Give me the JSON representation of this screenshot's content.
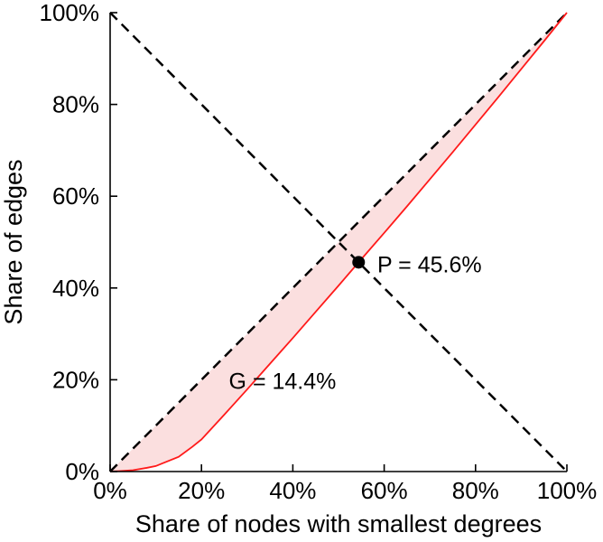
{
  "figure": {
    "background": "#ffffff",
    "text_color": "#000000"
  },
  "chart_data": {
    "type": "line",
    "title": "",
    "xlabel": "Share of nodes with smallest degrees",
    "ylabel": "Share of edges",
    "xlim": [
      0,
      100
    ],
    "ylim": [
      0,
      100
    ],
    "grid": false,
    "legend": "none",
    "x_ticks": {
      "values": [
        0,
        20,
        40,
        60,
        80,
        100
      ],
      "labels": [
        "0%",
        "20%",
        "40%",
        "60%",
        "80%",
        "100%"
      ]
    },
    "y_ticks": {
      "values": [
        0,
        20,
        40,
        60,
        80,
        100
      ],
      "labels": [
        "0%",
        "20%",
        "40%",
        "60%",
        "80%",
        "100%"
      ]
    },
    "series": [
      {
        "name": "equality-diagonal",
        "style": "dashed",
        "color": "#000000",
        "points": [
          [
            0,
            0
          ],
          [
            100,
            100
          ]
        ]
      },
      {
        "name": "anti-diagonal",
        "style": "dashed",
        "color": "#000000",
        "points": [
          [
            0,
            100
          ],
          [
            100,
            0
          ]
        ]
      },
      {
        "name": "lorenz-curve",
        "style": "solid",
        "color": "#ff1a1a",
        "fill_between_diagonal": "#fbdfdf",
        "points": [
          [
            0,
            0
          ],
          [
            2,
            0.1
          ],
          [
            5,
            0.3
          ],
          [
            8,
            0.8
          ],
          [
            10,
            1.2
          ],
          [
            12,
            2.0
          ],
          [
            15,
            3.2
          ],
          [
            18,
            5.4
          ],
          [
            20,
            7.0
          ],
          [
            25,
            12.4
          ],
          [
            30,
            17.9
          ],
          [
            35,
            23.5
          ],
          [
            40,
            29.1
          ],
          [
            45,
            34.8
          ],
          [
            50,
            40.5
          ],
          [
            54.4,
            45.6
          ],
          [
            60,
            52.0
          ],
          [
            65,
            57.8
          ],
          [
            70,
            63.7
          ],
          [
            75,
            69.6
          ],
          [
            80,
            75.6
          ],
          [
            85,
            81.6
          ],
          [
            90,
            87.7
          ],
          [
            95,
            93.8
          ],
          [
            100,
            100
          ]
        ]
      }
    ],
    "point_marker": {
      "x": 54.4,
      "y": 45.6,
      "color": "#000000"
    },
    "annotations": [
      {
        "id": "p-label",
        "text": "P = 45.6%",
        "x": 58.5,
        "y": 45.2,
        "anchor": "start"
      },
      {
        "id": "g-label",
        "text": "G = 14.4%",
        "x": 26.0,
        "y": 19.8,
        "anchor": "start"
      }
    ],
    "gini_label_value": "14.4%",
    "p_label_value": "45.6%"
  }
}
